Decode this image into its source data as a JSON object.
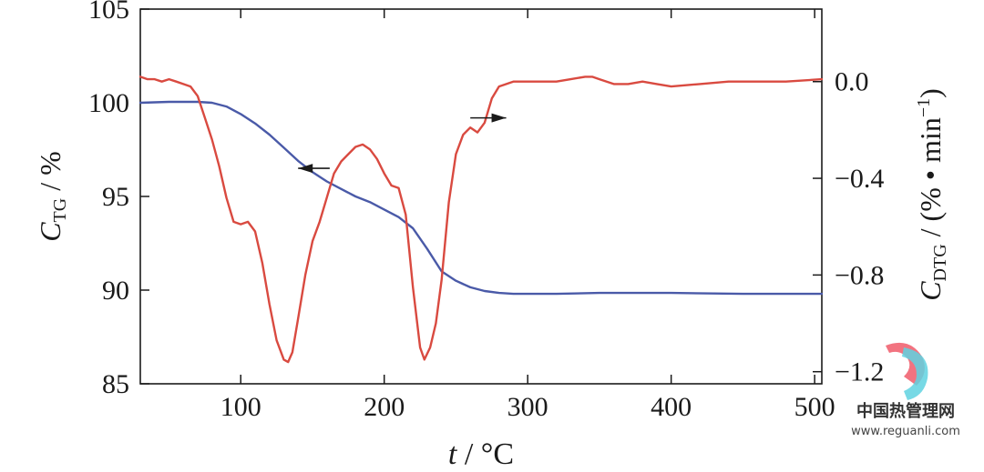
{
  "chart_data": {
    "type": "line",
    "x_label": {
      "italic": "t",
      "rest": " / °C"
    },
    "y_left_label": {
      "main": "C",
      "sub": "TG",
      "rest": " / %"
    },
    "y_right_label": {
      "main": "C",
      "sub": "DTG",
      "rest": " / (% • min",
      "sup": "−1",
      "close": ")"
    },
    "xlim": [
      30,
      505
    ],
    "ylim_left": [
      85,
      105
    ],
    "ylim_right": [
      -1.25,
      0.3
    ],
    "x_ticks": [
      "100",
      "200",
      "300",
      "400",
      "500"
    ],
    "x_tick_values": [
      100,
      200,
      300,
      400,
      500
    ],
    "y_left_ticks": [
      "85",
      "90",
      "95",
      "100",
      "105"
    ],
    "y_left_tick_values": [
      85,
      90,
      95,
      100,
      105
    ],
    "y_right_ticks": [
      "0.0",
      "−0.4",
      "−0.8",
      "−1.2"
    ],
    "y_right_tick_values": [
      0.0,
      -0.4,
      -0.8,
      -1.2
    ],
    "series": [
      {
        "axis": "left",
        "color": "#4a5aa8",
        "x": [
          30,
          50,
          70,
          80,
          90,
          100,
          110,
          120,
          130,
          140,
          150,
          160,
          170,
          180,
          190,
          200,
          210,
          220,
          230,
          240,
          250,
          260,
          270,
          280,
          290,
          300,
          320,
          350,
          400,
          450,
          505
        ],
        "y": [
          100.0,
          100.05,
          100.05,
          100.0,
          99.8,
          99.4,
          98.9,
          98.3,
          97.6,
          96.9,
          96.3,
          95.8,
          95.4,
          95.0,
          94.7,
          94.3,
          93.9,
          93.3,
          92.2,
          91.0,
          90.5,
          90.15,
          89.95,
          89.85,
          89.8,
          89.8,
          89.8,
          89.85,
          89.85,
          89.8,
          89.8
        ]
      },
      {
        "axis": "right",
        "color": "#d94a40",
        "x": [
          30,
          35,
          40,
          45,
          50,
          55,
          60,
          65,
          70,
          75,
          80,
          85,
          90,
          95,
          100,
          105,
          110,
          115,
          120,
          125,
          130,
          133,
          136,
          140,
          145,
          150,
          155,
          160,
          165,
          170,
          175,
          180,
          185,
          190,
          195,
          200,
          205,
          210,
          215,
          220,
          225,
          228,
          232,
          236,
          240,
          245,
          250,
          255,
          260,
          265,
          270,
          275,
          280,
          290,
          300,
          310,
          320,
          330,
          340,
          345,
          350,
          360,
          370,
          380,
          390,
          400,
          420,
          440,
          460,
          480,
          505
        ],
        "y": [
          0.02,
          0.01,
          0.01,
          0.0,
          0.01,
          0.0,
          -0.01,
          -0.02,
          -0.06,
          -0.15,
          -0.24,
          -0.35,
          -0.48,
          -0.58,
          -0.59,
          -0.58,
          -0.62,
          -0.75,
          -0.92,
          -1.07,
          -1.15,
          -1.16,
          -1.12,
          -0.98,
          -0.8,
          -0.66,
          -0.58,
          -0.48,
          -0.38,
          -0.33,
          -0.3,
          -0.27,
          -0.26,
          -0.28,
          -0.32,
          -0.38,
          -0.43,
          -0.44,
          -0.55,
          -0.85,
          -1.1,
          -1.15,
          -1.1,
          -1.0,
          -0.82,
          -0.5,
          -0.3,
          -0.22,
          -0.19,
          -0.21,
          -0.17,
          -0.07,
          -0.02,
          0.0,
          0.0,
          0.0,
          0.0,
          0.01,
          0.02,
          0.02,
          0.01,
          -0.01,
          -0.01,
          0.0,
          -0.01,
          -0.02,
          -0.01,
          0.0,
          0.0,
          0.0,
          0.01
        ]
      }
    ],
    "arrows": [
      {
        "direction": "left",
        "x": 162,
        "x_end": 140,
        "y_left": 96.5
      },
      {
        "direction": "right",
        "x": 260,
        "x_end": 285,
        "y_right": -0.15
      }
    ]
  },
  "watermark": {
    "site_name_cn": "中国热管理网",
    "url": "www.reguanli.com"
  }
}
